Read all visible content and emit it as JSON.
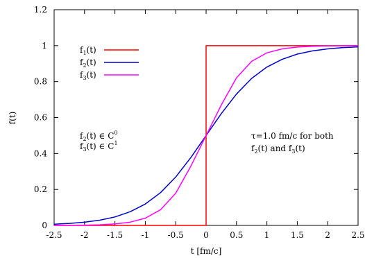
{
  "chart_data": {
    "type": "line",
    "xlabel": "t [fm/c]",
    "ylabel": "f(t)",
    "xlim": [
      -2.5,
      2.5
    ],
    "ylim": [
      0,
      1.2
    ],
    "x_ticks": [
      "-2.5",
      "-2",
      "-1.5",
      "-1",
      "-0.5",
      "0",
      "0.5",
      "1",
      "1.5",
      "2",
      "2.5"
    ],
    "y_ticks": [
      "0",
      "0.2",
      "0.4",
      "0.6",
      "0.8",
      "1",
      "1.2"
    ],
    "x_tick_values": [
      -2.5,
      -2,
      -1.5,
      -1,
      -0.5,
      0,
      0.5,
      1,
      1.5,
      2,
      2.5
    ],
    "y_tick_values": [
      0,
      0.2,
      0.4,
      0.6,
      0.8,
      1,
      1.2
    ],
    "grid": false,
    "legend_position": "top-left",
    "series": [
      {
        "name_base": "f",
        "name_sub": "1",
        "name_suffix": "(t)",
        "color": "#ff0000",
        "x": [
          -2.5,
          0,
          0,
          2.5
        ],
        "y": [
          0,
          0,
          1,
          1
        ]
      },
      {
        "name_base": "f",
        "name_sub": "2",
        "name_suffix": "(t)",
        "color": "#0000cc",
        "x": [
          -2.5,
          -2.25,
          -2,
          -1.75,
          -1.5,
          -1.25,
          -1,
          -0.75,
          -0.5,
          -0.25,
          0,
          0.25,
          0.5,
          0.75,
          1,
          1.25,
          1.5,
          1.75,
          2,
          2.25,
          2.5
        ],
        "y": [
          0.007,
          0.011,
          0.018,
          0.029,
          0.047,
          0.076,
          0.119,
          0.182,
          0.269,
          0.378,
          0.5,
          0.622,
          0.731,
          0.818,
          0.881,
          0.924,
          0.953,
          0.971,
          0.982,
          0.989,
          0.993
        ]
      },
      {
        "name_base": "f",
        "name_sub": "3",
        "name_suffix": "(t)",
        "color": "#ff00ff",
        "x": [
          -2.5,
          -2.25,
          -2,
          -1.75,
          -1.5,
          -1.25,
          -1,
          -0.75,
          -0.5,
          -0.25,
          0,
          0.25,
          0.5,
          0.75,
          1,
          1.25,
          1.5,
          1.75,
          2,
          2.25,
          2.5
        ],
        "y": [
          0.0003,
          0.0006,
          0.0015,
          0.0035,
          0.008,
          0.018,
          0.04,
          0.087,
          0.179,
          0.33,
          0.5,
          0.67,
          0.821,
          0.913,
          0.96,
          0.982,
          0.992,
          0.9965,
          0.9985,
          0.9994,
          0.9997
        ]
      }
    ],
    "annotations": {
      "continuity": [
        {
          "base": "f",
          "sub": "2",
          "rest": "(t) ∈ C",
          "sup": "0"
        },
        {
          "base": "f",
          "sub": "3",
          "rest": "(t) ∈ C",
          "sup": "1"
        }
      ],
      "tau_line1": "τ=1.0 fm/c for both",
      "tau_line2": {
        "base": "f",
        "sub": "2",
        "rest1": "(t) and f",
        "sub2": "3",
        "rest2": "(t)"
      }
    }
  }
}
